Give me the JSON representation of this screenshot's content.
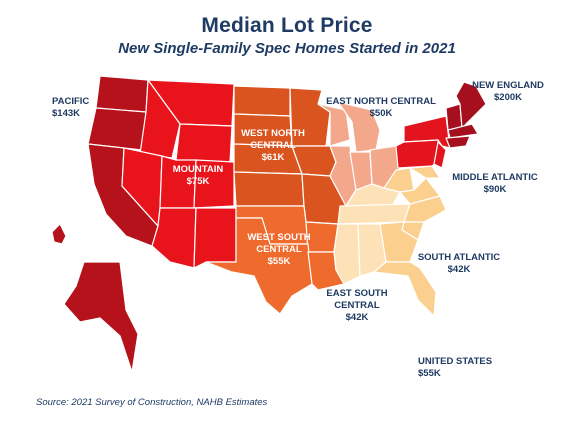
{
  "header": {
    "title": "Median Lot Price",
    "subtitle": "New Single-Family Spec Homes Started in 2021"
  },
  "regions": {
    "pacific": {
      "name": "PACIFIC",
      "price": "$143K",
      "value_k": 143,
      "color": "#b5121b"
    },
    "mountain": {
      "name": "MOUNTAIN",
      "price": "$75K",
      "value_k": 75,
      "color": "#e9131c"
    },
    "west_north_central": {
      "name_line1": "WEST NORTH",
      "name_line2": "CENTRAL",
      "price": "$61K",
      "value_k": 61,
      "color": "#d9541f"
    },
    "west_south_central": {
      "name_line1": "WEST SOUTH",
      "name_line2": "CENTRAL",
      "price": "$55K",
      "value_k": 55,
      "color": "#ef6a2d"
    },
    "east_north_central": {
      "name": "EAST NORTH CENTRAL",
      "price": "$50K",
      "value_k": 50,
      "color": "#f4a88b"
    },
    "east_south_central": {
      "name_line1": "EAST SOUTH",
      "name_line2": "CENTRAL",
      "price": "$42K",
      "value_k": 42,
      "color": "#fde2b8"
    },
    "south_atlantic": {
      "name": "SOUTH ATLANTIC",
      "price": "$42K",
      "value_k": 42,
      "color": "#fbcf8e"
    },
    "middle_atlantic": {
      "name": "MIDDLE ATLANTIC",
      "price": "$90K",
      "value_k": 90,
      "color": "#e3141e"
    },
    "new_england": {
      "name": "NEW ENGLAND",
      "price": "$200K",
      "value_k": 200,
      "color": "#a50f1e"
    }
  },
  "united_states": {
    "name": "UNITED STATES",
    "price": "$55K",
    "value_k": 55
  },
  "footer": {
    "source": "Source: 2021 Survey of Construction, NAHB Estimates"
  },
  "colors": {
    "text": "#1f3b63",
    "state_border": "#ffffff"
  }
}
